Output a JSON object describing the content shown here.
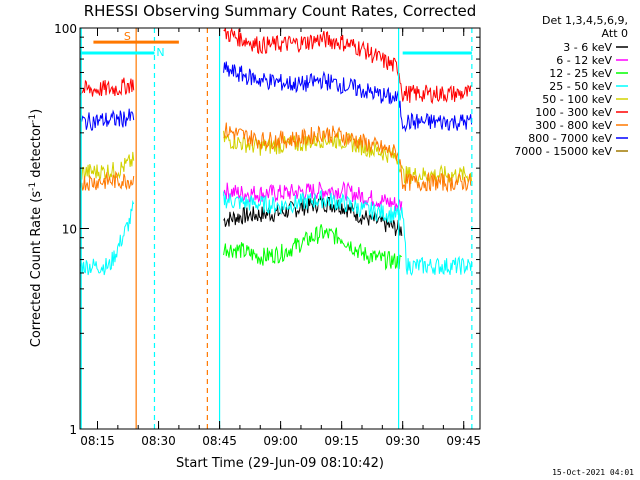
{
  "chart_data": {
    "type": "line",
    "title": "RHESSI Observing Summary Count Rates, Corrected",
    "xlabel": "Start Time (29-Jun-09 08:10:42)",
    "ylabel": "Corrected Count Rate (s⁻¹ detector⁻¹)",
    "ylabel_parts": {
      "main": "Corrected Count Rate (s",
      "sup1": "-1",
      "mid": " detector",
      "sup2": "-1",
      "end": ")"
    },
    "y_scale": "log",
    "ylim": [
      1,
      100
    ],
    "y_ticks": [
      {
        "value": 1,
        "label": "1"
      },
      {
        "value": 10,
        "label": "10"
      },
      {
        "value": 100,
        "label": "100"
      }
    ],
    "xlim": [
      "08:10:42",
      "09:49:00"
    ],
    "x_ticks": [
      {
        "value": "08:15",
        "label": "08:15"
      },
      {
        "value": "08:30",
        "label": "08:30"
      },
      {
        "value": "08:45",
        "label": "08:45"
      },
      {
        "value": "09:00",
        "label": "09:00"
      },
      {
        "value": "09:15",
        "label": "09:15"
      },
      {
        "value": "09:30",
        "label": "09:30"
      },
      {
        "value": "09:45",
        "label": "09:45"
      }
    ],
    "legend_title": [
      "Det 1,3,4,5,6,9,",
      "Att 0"
    ],
    "legend_position": "right",
    "series": [
      {
        "name": "3 - 6 keV",
        "color": "#000000",
        "points": [
          [
            "08:10:42",
            null
          ],
          [
            "08:24:00",
            null
          ],
          [
            "08:46:00",
            11.0
          ],
          [
            "08:50:00",
            11.5
          ],
          [
            "09:00:00",
            12.0
          ],
          [
            "09:10:00",
            13.5
          ],
          [
            "09:15:00",
            13.0
          ],
          [
            "09:20:00",
            11.5
          ],
          [
            "09:30:00",
            9.8
          ],
          [
            "09:31:00",
            null
          ]
        ]
      },
      {
        "name": "6 - 12 keV",
        "color": "#ff00ff",
        "points": [
          [
            "08:10:42",
            null
          ],
          [
            "08:24:00",
            null
          ],
          [
            "08:46:00",
            15.5
          ],
          [
            "08:50:00",
            15.0
          ],
          [
            "09:00:00",
            15.0
          ],
          [
            "09:10:00",
            15.5
          ],
          [
            "09:15:00",
            15.5
          ],
          [
            "09:20:00",
            14.5
          ],
          [
            "09:30:00",
            13.0
          ],
          [
            "09:31:00",
            null
          ]
        ]
      },
      {
        "name": "12 - 25 keV",
        "color": "#00ff00",
        "points": [
          [
            "08:10:42",
            null
          ],
          [
            "08:24:00",
            null
          ],
          [
            "08:46:00",
            8.0
          ],
          [
            "08:50:00",
            7.8
          ],
          [
            "08:55:00",
            7.2
          ],
          [
            "09:00:00",
            7.5
          ],
          [
            "09:10:00",
            9.5
          ],
          [
            "09:15:00",
            9.0
          ],
          [
            "09:20:00",
            7.5
          ],
          [
            "09:25:00",
            7.0
          ],
          [
            "09:30:00",
            6.8
          ],
          [
            "09:31:00",
            null
          ]
        ]
      },
      {
        "name": "25 - 50 keV",
        "color": "#00ffff",
        "points": [
          [
            "08:10:42",
            6.5
          ],
          [
            "08:18:00",
            6.5
          ],
          [
            "08:20:00",
            8.0
          ],
          [
            "08:23:00",
            11.0
          ],
          [
            "08:24:00",
            13.0
          ],
          [
            "08:25:00",
            null
          ],
          [
            "08:45:00",
            null
          ],
          [
            "08:46:00",
            14.0
          ],
          [
            "08:50:00",
            13.5
          ],
          [
            "09:00:00",
            13.0
          ],
          [
            "09:10:00",
            14.0
          ],
          [
            "09:15:00",
            13.5
          ],
          [
            "09:20:00",
            12.5
          ],
          [
            "09:30:00",
            11.5
          ],
          [
            "09:31:00",
            6.5
          ],
          [
            "09:47:00",
            6.5
          ]
        ]
      },
      {
        "name": "50 - 100 keV",
        "color": "#d2d200",
        "points": [
          [
            "08:10:42",
            19.0
          ],
          [
            "08:20:00",
            19.5
          ],
          [
            "08:24:00",
            22.0
          ],
          [
            "08:25:00",
            null
          ],
          [
            "08:45:00",
            null
          ],
          [
            "08:46:00",
            28.0
          ],
          [
            "08:55:00",
            25.5
          ],
          [
            "09:05:00",
            26.5
          ],
          [
            "09:10:00",
            28.0
          ],
          [
            "09:15:00",
            27.5
          ],
          [
            "09:25:00",
            24.0
          ],
          [
            "09:29:00",
            22.5
          ],
          [
            "09:30:00",
            18.5
          ],
          [
            "09:47:00",
            18.5
          ]
        ]
      },
      {
        "name": "100 - 300 keV",
        "color": "#ff0000",
        "points": [
          [
            "08:10:42",
            49.0
          ],
          [
            "08:20:00",
            50.0
          ],
          [
            "08:24:00",
            53.0
          ],
          [
            "08:25:00",
            null
          ],
          [
            "08:45:00",
            null
          ],
          [
            "08:46:00",
            95.0
          ],
          [
            "08:55:00",
            82.0
          ],
          [
            "09:05:00",
            84.0
          ],
          [
            "09:10:00",
            88.0
          ],
          [
            "09:15:00",
            85.0
          ],
          [
            "09:20:00",
            79.0
          ],
          [
            "09:25:00",
            69.0
          ],
          [
            "09:29:00",
            63.0
          ],
          [
            "09:30:00",
            47.0
          ],
          [
            "09:47:00",
            47.0
          ]
        ]
      },
      {
        "name": "300 - 800 keV",
        "color": "#ff7800",
        "points": [
          [
            "08:10:42",
            17.0
          ],
          [
            "08:24:00",
            17.5
          ],
          [
            "08:25:00",
            null
          ],
          [
            "08:45:00",
            null
          ],
          [
            "08:46:00",
            31.0
          ],
          [
            "08:55:00",
            27.5
          ],
          [
            "09:05:00",
            28.0
          ],
          [
            "09:10:00",
            30.0
          ],
          [
            "09:15:00",
            29.0
          ],
          [
            "09:20:00",
            27.0
          ],
          [
            "09:25:00",
            25.0
          ],
          [
            "09:29:00",
            23.5
          ],
          [
            "09:30:00",
            17.0
          ],
          [
            "09:47:00",
            17.0
          ]
        ]
      },
      {
        "name": "800 - 7000 keV",
        "color": "#0000ff",
        "points": [
          [
            "08:10:42",
            34.0
          ],
          [
            "08:20:00",
            35.0
          ],
          [
            "08:24:00",
            36.0
          ],
          [
            "08:25:00",
            null
          ],
          [
            "08:45:00",
            null
          ],
          [
            "08:46:00",
            62.0
          ],
          [
            "08:55:00",
            55.0
          ],
          [
            "09:05:00",
            52.0
          ],
          [
            "09:10:00",
            55.0
          ],
          [
            "09:15:00",
            52.0
          ],
          [
            "09:20:00",
            49.0
          ],
          [
            "09:25:00",
            46.0
          ],
          [
            "09:29:00",
            44.0
          ],
          [
            "09:30:00",
            34.0
          ],
          [
            "09:47:00",
            34.0
          ]
        ]
      },
      {
        "name": "7000 - 15000 keV",
        "color": "#a07800",
        "points": []
      }
    ],
    "annotations": {
      "saa_label": "S",
      "night_label": "N",
      "saa_color": "#ff7800",
      "night_color": "#00ffff",
      "saa_bar": [
        "08:14:00",
        "08:35:00"
      ],
      "saa_bar_level": 85,
      "night_bars": [
        [
          "08:10:42",
          "08:29:00"
        ],
        [
          "09:30:00",
          "09:47:00"
        ]
      ],
      "night_bar_level": 75,
      "vlines": [
        {
          "time": "08:24:30",
          "color": "#ff7800",
          "style": "solid"
        },
        {
          "time": "08:42:00",
          "color": "#ff7800",
          "style": "dashed"
        },
        {
          "time": "08:11:00",
          "color": "#00ffff",
          "style": "solid"
        },
        {
          "time": "08:29:00",
          "color": "#00ffff",
          "style": "dashed"
        },
        {
          "time": "08:45:00",
          "color": "#00ffff",
          "style": "solid"
        },
        {
          "time": "09:29:00",
          "color": "#00ffff",
          "style": "solid"
        },
        {
          "time": "09:47:00",
          "color": "#00ffff",
          "style": "dashed"
        }
      ]
    },
    "footer_timestamp": "15-Oct-2021 04:01"
  }
}
